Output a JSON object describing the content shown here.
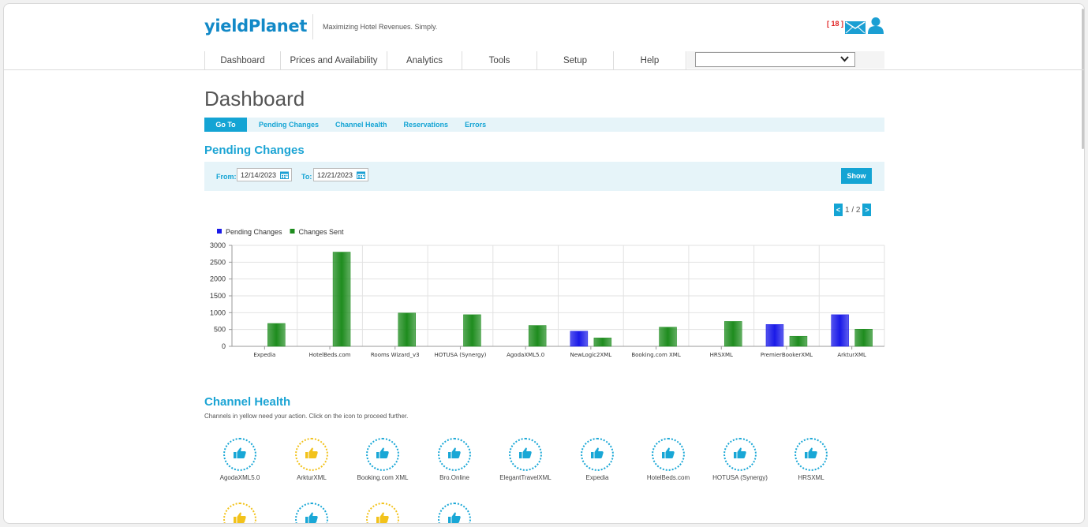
{
  "header": {
    "logo": "yieldPlanet",
    "tagline": "Maximizing Hotel Revenues. Simply.",
    "notification_count": "[ 18 ]",
    "mail_icon": "mail-icon",
    "user_icon": "user-icon"
  },
  "nav": {
    "items": [
      {
        "label": "Dashboard"
      },
      {
        "label": "Prices and Availability"
      },
      {
        "label": "Analytics"
      },
      {
        "label": "Tools"
      },
      {
        "label": "Setup"
      },
      {
        "label": "Help"
      }
    ],
    "select_value": ""
  },
  "page": {
    "title": "Dashboard"
  },
  "subnav": {
    "goto": "Go To",
    "links": [
      "Pending Changes",
      "Channel Health",
      "Reservations",
      "Errors"
    ]
  },
  "pending": {
    "title": "Pending Changes",
    "from_label": "From:",
    "from_value": "12/14/2023",
    "to_label": "To:",
    "to_value": "12/21/2023",
    "show_label": "Show",
    "pager": {
      "prev": "<",
      "text": "1 / 2",
      "next": ">"
    }
  },
  "chart_data": {
    "type": "bar",
    "title": "",
    "categories": [
      "Expedia",
      "HotelBeds.com",
      "Rooms Wizard_v3",
      "HOTUSA (Synergy)",
      "AgodaXML5.0",
      "NewLogic2XML",
      "Booking.com XML",
      "HRSXML",
      "PremierBookerXML",
      "ArkturXML"
    ],
    "series": [
      {
        "name": "Pending Changes",
        "color": "#1a1ae8",
        "values": [
          0,
          0,
          0,
          0,
          0,
          450,
          0,
          0,
          650,
          940
        ]
      },
      {
        "name": "Changes Sent",
        "color": "#1e8c1e",
        "values": [
          680,
          2800,
          990,
          940,
          620,
          250,
          570,
          740,
          300,
          510
        ]
      }
    ],
    "ylim": [
      0,
      3000
    ],
    "yticks": [
      0,
      500,
      1000,
      1500,
      2000,
      2500,
      3000
    ],
    "xlabel": "",
    "ylabel": "",
    "legend": "top-left",
    "grid": true
  },
  "channel_health": {
    "title": "Channel Health",
    "description": "Channels in yellow need your action. Click on the icon to proceed further.",
    "channels": [
      {
        "name": "AgodaXML5.0",
        "status": "ok"
      },
      {
        "name": "ArkturXML",
        "status": "action"
      },
      {
        "name": "Booking.com XML",
        "status": "ok"
      },
      {
        "name": "Bro.Online",
        "status": "ok"
      },
      {
        "name": "ElegantTravelXML",
        "status": "ok"
      },
      {
        "name": "Expedia",
        "status": "ok"
      },
      {
        "name": "HotelBeds.com",
        "status": "ok"
      },
      {
        "name": "HOTUSA (Synergy)",
        "status": "ok"
      },
      {
        "name": "HRSXML",
        "status": "ok"
      },
      {
        "name": "",
        "status": "action"
      },
      {
        "name": "",
        "status": "ok"
      },
      {
        "name": "",
        "status": "action"
      },
      {
        "name": "",
        "status": "ok"
      }
    ],
    "icon": "thumbs-up-icon",
    "ok_color": "#19a7d6",
    "action_color": "#f2c21b"
  }
}
